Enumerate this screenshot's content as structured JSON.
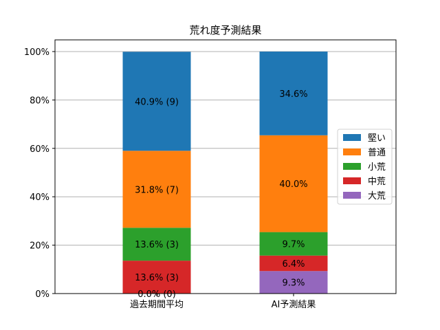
{
  "chart_data": {
    "type": "bar",
    "stacked": true,
    "title": "荒れ度予測結果",
    "xlabel": "",
    "ylabel": "",
    "ylim": [
      0,
      100
    ],
    "y_tick_labels": [
      "0%",
      "20%",
      "40%",
      "60%",
      "80%",
      "100%"
    ],
    "y_ticks": [
      0,
      20,
      40,
      60,
      80,
      100
    ],
    "grid": "horizontal",
    "legend_position": "right",
    "categories": [
      "過去期間平均",
      "AI予測結果"
    ],
    "series": [
      {
        "name": "大荒",
        "color": "#9467bd",
        "values": [
          0.0,
          9.3
        ],
        "labels": [
          "0.0% (0)",
          "9.3%"
        ]
      },
      {
        "name": "中荒",
        "color": "#d62728",
        "values": [
          13.6,
          6.4
        ],
        "labels": [
          "13.6% (3)",
          "6.4%"
        ]
      },
      {
        "name": "小荒",
        "color": "#2ca02c",
        "values": [
          13.6,
          9.7
        ],
        "labels": [
          "13.6% (3)",
          "9.7%"
        ]
      },
      {
        "name": "普通",
        "color": "#ff7f0e",
        "values": [
          31.8,
          40.0
        ],
        "labels": [
          "31.8% (7)",
          "40.0%"
        ]
      },
      {
        "name": "堅い",
        "color": "#1f77b4",
        "values": [
          40.9,
          34.6
        ],
        "labels": [
          "40.9% (9)",
          "34.6%"
        ]
      }
    ],
    "legend_order": [
      "堅い",
      "普通",
      "小荒",
      "中荒",
      "大荒"
    ]
  }
}
